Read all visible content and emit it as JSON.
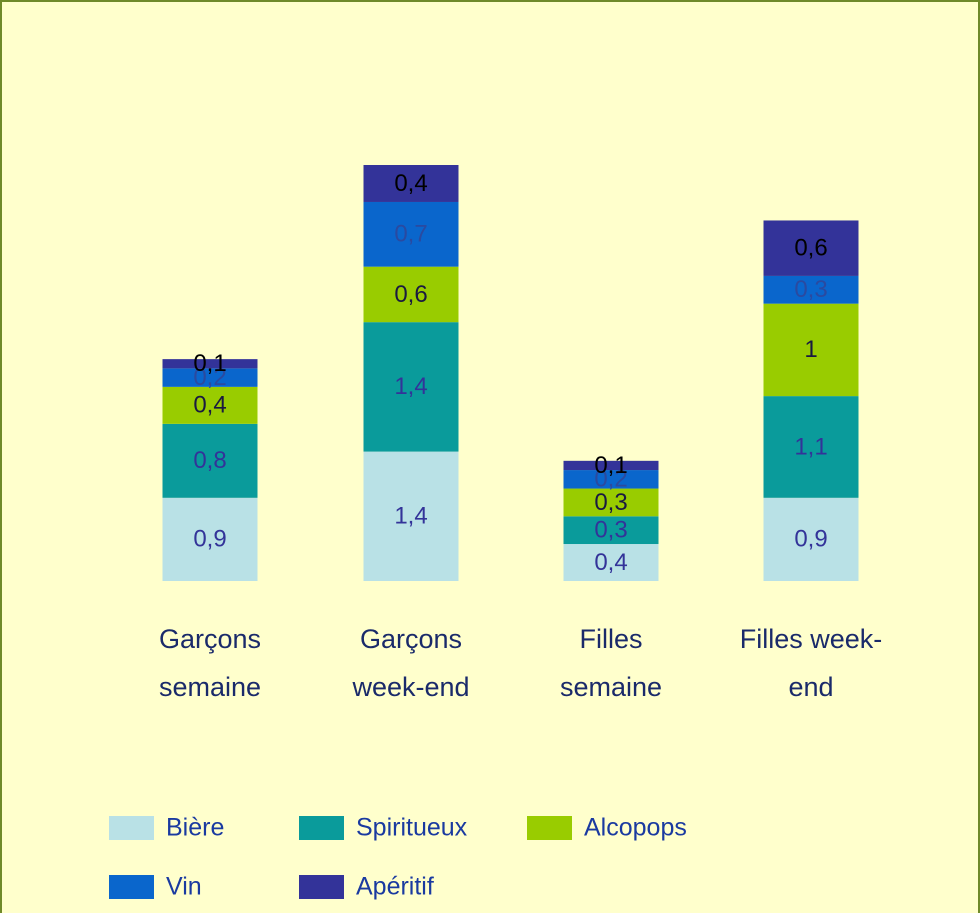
{
  "chart_data": {
    "type": "stacked_bar",
    "categories": [
      "Garçons semaine",
      "Garçons week-end",
      "Filles semaine",
      "Filles week-end"
    ],
    "series": [
      {
        "name": "Bière",
        "color": "#b9e1e6",
        "values": [
          0.9,
          1.4,
          0.4,
          0.9
        ],
        "value_labels": [
          "0,9",
          "1,4",
          "0,4",
          "0,9"
        ]
      },
      {
        "name": "Spiritueux",
        "color": "#0a9b9b",
        "values": [
          0.8,
          1.4,
          0.3,
          1.1
        ],
        "value_labels": [
          "0,8",
          "1,4",
          "0,3",
          "1,1"
        ]
      },
      {
        "name": "Alcopops",
        "color": "#99cc00",
        "values": [
          0.4,
          0.6,
          0.3,
          1
        ],
        "value_labels": [
          "0,4",
          "0,6",
          "0,3",
          "1"
        ]
      },
      {
        "name": "Vin",
        "color": "#0a66cc",
        "values": [
          0.2,
          0.7,
          0.2,
          0.3
        ],
        "value_labels": [
          "0,2",
          "0,7",
          "0,2",
          "0,3"
        ]
      },
      {
        "name": "Apéritif",
        "color": "#333399",
        "values": [
          0.1,
          0.4,
          0.1,
          0.6
        ],
        "value_labels": [
          "0,1",
          "0,4",
          "0,1",
          "0,6"
        ]
      }
    ],
    "legend": "bottom"
  }
}
